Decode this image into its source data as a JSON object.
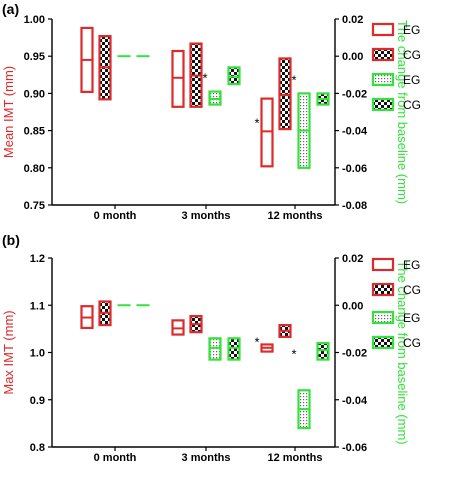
{
  "colors": {
    "eg": "#dd2a2a",
    "cg": "#dd2a2a",
    "change": "#33e23a",
    "axis": "#000000",
    "text": "#000000"
  },
  "chart_data": [
    {
      "panel_label": "(a)",
      "type": "floating-bar",
      "categories": [
        "0 month",
        "3 months",
        "12 months"
      ],
      "left_axis": {
        "label": "Mean IMT (mm)",
        "ylim": [
          0.75,
          1.0
        ],
        "ticks": [
          "0.75",
          "0.80",
          "0.85",
          "0.90",
          "0.95",
          "1.00"
        ],
        "tick_values": [
          0.75,
          0.8,
          0.85,
          0.9,
          0.95,
          1.0
        ]
      },
      "right_axis": {
        "label": "The change from baseline (mm)",
        "ylim": [
          -0.08,
          0.02
        ],
        "ticks": [
          "0.02",
          "0.00",
          "-0.02",
          "-0.04",
          "-0.06",
          "-0.08"
        ],
        "tick_values": [
          0.02,
          0.0,
          -0.02,
          -0.04,
          -0.06,
          -0.08
        ]
      },
      "legend": [
        "EG",
        "CG",
        "EG",
        "CG"
      ],
      "legend_position": "top-right outside",
      "series": [
        {
          "name": "EG",
          "axis": "left",
          "pattern": "open",
          "bars": [
            {
              "category": "0 month",
              "low": 0.902,
              "high": 0.988,
              "mean": 0.945
            },
            {
              "category": "3 months",
              "low": 0.882,
              "high": 0.957,
              "mean": 0.921
            },
            {
              "category": "12 months",
              "low": 0.802,
              "high": 0.893,
              "mean": 0.849
            }
          ]
        },
        {
          "name": "CG",
          "axis": "left",
          "pattern": "checker",
          "bars": [
            {
              "category": "0 month",
              "low": 0.892,
              "high": 0.977,
              "mean": 0.935
            },
            {
              "category": "3 months",
              "low": 0.882,
              "high": 0.967,
              "mean": 0.924
            },
            {
              "category": "12 months",
              "low": 0.852,
              "high": 0.947,
              "mean": 0.898
            }
          ]
        },
        {
          "name": "EG",
          "axis": "right",
          "pattern": "dots",
          "bars": [
            {
              "category": "0 month",
              "low": 0.0,
              "high": 0.0,
              "mean": 0.0
            },
            {
              "category": "3 months",
              "low": -0.026,
              "high": -0.019,
              "mean": -0.023
            },
            {
              "category": "12 months",
              "low": -0.06,
              "high": -0.02,
              "mean": -0.04
            }
          ]
        },
        {
          "name": "CG",
          "axis": "right",
          "pattern": "checker",
          "bars": [
            {
              "category": "0 month",
              "low": 0.0,
              "high": 0.0,
              "mean": 0.0
            },
            {
              "category": "3 months",
              "low": -0.015,
              "high": -0.006,
              "mean": -0.011
            },
            {
              "category": "12 months",
              "low": -0.026,
              "high": -0.02,
              "mean": -0.023
            }
          ]
        }
      ],
      "annotations": [
        {
          "text": "*",
          "category": "3 months",
          "series": 2,
          "axis": "right",
          "y": -0.011
        },
        {
          "text": "*",
          "category": "12 months",
          "series": 0,
          "axis": "left",
          "y": 0.862
        },
        {
          "text": "*",
          "category": "12 months",
          "series": 2,
          "axis": "right",
          "y": -0.012
        }
      ]
    },
    {
      "panel_label": "(b)",
      "type": "floating-bar",
      "categories": [
        "0 month",
        "3 months",
        "12 months"
      ],
      "left_axis": {
        "label": "Max IMT (mm)",
        "ylim": [
          0.8,
          1.2
        ],
        "ticks": [
          "0.8",
          "0.9",
          "1.0",
          "1.1",
          "1.2"
        ],
        "tick_values": [
          0.8,
          0.9,
          1.0,
          1.1,
          1.2
        ]
      },
      "right_axis": {
        "label": "The change from baseline (mm)",
        "ylim": [
          -0.06,
          0.02
        ],
        "ticks": [
          "0.02",
          "0.00",
          "-0.02",
          "-0.04",
          "-0.06"
        ],
        "tick_values": [
          0.02,
          0.0,
          -0.02,
          -0.04,
          -0.06
        ]
      },
      "legend": [
        "EG",
        "CG",
        "EG",
        "CG"
      ],
      "legend_position": "top-right outside",
      "series": [
        {
          "name": "EG",
          "axis": "left",
          "pattern": "open",
          "bars": [
            {
              "category": "0 month",
              "low": 1.052,
              "high": 1.098,
              "mean": 1.074
            },
            {
              "category": "3 months",
              "low": 1.038,
              "high": 1.068,
              "mean": 1.051
            },
            {
              "category": "12 months",
              "low": 1.002,
              "high": 1.017,
              "mean": 1.01
            }
          ]
        },
        {
          "name": "CG",
          "axis": "left",
          "pattern": "checker",
          "bars": [
            {
              "category": "0 month",
              "low": 1.058,
              "high": 1.108,
              "mean": 1.084
            },
            {
              "category": "3 months",
              "low": 1.043,
              "high": 1.077,
              "mean": 1.06
            },
            {
              "category": "12 months",
              "low": 1.033,
              "high": 1.058,
              "mean": 1.046
            }
          ]
        },
        {
          "name": "EG",
          "axis": "right",
          "pattern": "dots",
          "bars": [
            {
              "category": "0 month",
              "low": 0.0,
              "high": 0.0,
              "mean": 0.0
            },
            {
              "category": "3 months",
              "low": -0.023,
              "high": -0.014,
              "mean": -0.018
            },
            {
              "category": "12 months",
              "low": -0.052,
              "high": -0.036,
              "mean": -0.044
            }
          ]
        },
        {
          "name": "CG",
          "axis": "right",
          "pattern": "checker",
          "bars": [
            {
              "category": "0 month",
              "low": 0.0,
              "high": 0.0,
              "mean": 0.0
            },
            {
              "category": "3 months",
              "low": -0.023,
              "high": -0.014,
              "mean": -0.018
            },
            {
              "category": "12 months",
              "low": -0.023,
              "high": -0.016,
              "mean": -0.019
            }
          ]
        }
      ],
      "annotations": [
        {
          "text": "*",
          "category": "12 months",
          "series": 0,
          "axis": "left",
          "y": 1.025
        },
        {
          "text": "*",
          "category": "12 months",
          "series": 2,
          "axis": "right",
          "y": -0.02
        }
      ]
    }
  ]
}
